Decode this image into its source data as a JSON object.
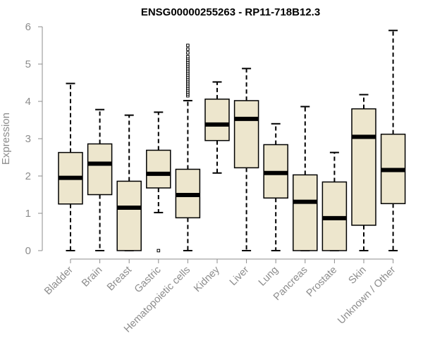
{
  "chart_data": {
    "type": "boxplot",
    "title": "ENSG00000255263 - RP11-718B12.3",
    "xlabel": "",
    "ylabel": "Expression",
    "ylim": [
      0,
      6
    ],
    "yticks": [
      0,
      1,
      2,
      3,
      4,
      5,
      6
    ],
    "box_color": "#ede6cd",
    "categories": [
      "Bladder",
      "Brain",
      "Breast",
      "Gastric",
      "Hematopoietic cells",
      "Kidney",
      "Liver",
      "Lung",
      "Pancreas",
      "Prostate",
      "Skin",
      "Unknown / Other"
    ],
    "boxes": [
      {
        "min": 0.0,
        "q1": 1.25,
        "median": 1.95,
        "q3": 2.63,
        "max": 4.48,
        "outliers": []
      },
      {
        "min": 0.0,
        "q1": 1.5,
        "median": 2.33,
        "q3": 2.86,
        "max": 3.78,
        "outliers": []
      },
      {
        "min": 0.0,
        "q1": 0.0,
        "median": 1.15,
        "q3": 1.86,
        "max": 3.63,
        "outliers": []
      },
      {
        "min": 1.02,
        "q1": 1.68,
        "median": 2.06,
        "q3": 2.69,
        "max": 3.71,
        "outliers": [
          0.0
        ]
      },
      {
        "min": 0.0,
        "q1": 0.88,
        "median": 1.49,
        "q3": 2.18,
        "max": 4.02,
        "outliers": [
          4.15,
          4.2,
          4.25,
          4.3,
          4.35,
          4.4,
          4.45,
          4.5,
          4.55,
          4.6,
          4.65,
          4.7,
          4.75,
          4.8,
          4.85,
          4.9,
          4.95,
          5.0,
          5.05,
          5.1,
          5.15,
          5.2,
          5.3,
          5.4,
          5.5
        ]
      },
      {
        "min": 2.08,
        "q1": 2.95,
        "median": 3.38,
        "q3": 4.06,
        "max": 4.52,
        "outliers": []
      },
      {
        "min": 0.0,
        "q1": 2.22,
        "median": 3.53,
        "q3": 4.02,
        "max": 4.88,
        "outliers": []
      },
      {
        "min": 0.0,
        "q1": 1.41,
        "median": 2.08,
        "q3": 2.84,
        "max": 3.4,
        "outliers": []
      },
      {
        "min": 0.0,
        "q1": 0.0,
        "median": 1.31,
        "q3": 2.03,
        "max": 3.86,
        "outliers": []
      },
      {
        "min": 0.0,
        "q1": 0.0,
        "median": 0.87,
        "q3": 1.84,
        "max": 2.63,
        "outliers": []
      },
      {
        "min": 0.0,
        "q1": 0.68,
        "median": 3.05,
        "q3": 3.8,
        "max": 4.18,
        "outliers": []
      },
      {
        "min": 0.0,
        "q1": 1.26,
        "median": 2.16,
        "q3": 3.12,
        "max": 5.9,
        "outliers": []
      }
    ]
  }
}
